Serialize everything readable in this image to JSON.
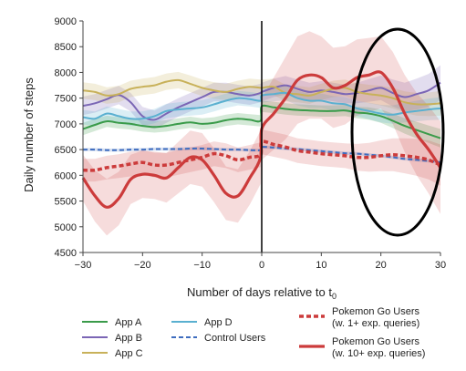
{
  "chart_data": {
    "type": "line",
    "xlabel": "Number of days relative to t",
    "xlabel_subscript": "0",
    "ylabel": "Daily number of steps",
    "xlim": [
      -30,
      30
    ],
    "ylim": [
      4500,
      9000
    ],
    "x_ticks": [
      "−30",
      "−20",
      "−10",
      "0",
      "10",
      "20",
      "30"
    ],
    "x_tick_values": [
      -30,
      -20,
      -10,
      0,
      10,
      20,
      30
    ],
    "y_ticks": [
      "4500",
      "5000",
      "5500",
      "6000",
      "6500",
      "7000",
      "7500",
      "8000",
      "8500",
      "9000"
    ],
    "y_tick_values": [
      4500,
      5000,
      5500,
      6000,
      6500,
      7000,
      7500,
      8000,
      8500,
      9000
    ],
    "grid": false,
    "event_line_x": 0,
    "annotation": "ellipse highlighting days 17–30",
    "legend_placement": "below plot",
    "x": [
      -30,
      -28,
      -26,
      -24,
      -22,
      -20,
      -18,
      -16,
      -14,
      -12,
      -10,
      -8,
      -6,
      -4,
      -2,
      -0.2,
      0,
      2,
      4,
      6,
      8,
      10,
      12,
      14,
      16,
      18,
      20,
      22,
      24,
      26,
      28,
      30
    ],
    "series": [
      {
        "name": "App A",
        "color": "#3a9b4a",
        "dash": "solid",
        "values": [
          6900,
          6980,
          7050,
          7020,
          7000,
          6960,
          6940,
          6960,
          7000,
          7030,
          7000,
          7020,
          7070,
          7100,
          7080,
          7060,
          7340,
          7320,
          7290,
          7270,
          7260,
          7250,
          7250,
          7260,
          7220,
          7200,
          7150,
          7060,
          6960,
          6880,
          6800,
          6720
        ],
        "band_width": [
          120,
          120,
          110,
          110,
          110,
          110,
          110,
          110,
          110,
          110,
          110,
          110,
          110,
          110,
          110,
          110,
          110,
          110,
          110,
          110,
          110,
          110,
          110,
          110,
          110,
          120,
          130,
          140,
          150,
          160,
          170,
          180
        ]
      },
      {
        "name": "App B",
        "color": "#7b66b5",
        "dash": "solid",
        "values": [
          7350,
          7400,
          7480,
          7560,
          7420,
          7150,
          7080,
          7200,
          7320,
          7420,
          7520,
          7620,
          7620,
          7580,
          7550,
          7600,
          7620,
          7700,
          7750,
          7680,
          7620,
          7650,
          7620,
          7580,
          7600,
          7650,
          7700,
          7600,
          7520,
          7580,
          7650,
          7800
        ],
        "band_width": [
          180,
          180,
          180,
          180,
          180,
          180,
          180,
          180,
          180,
          180,
          180,
          180,
          180,
          180,
          180,
          180,
          180,
          180,
          180,
          180,
          180,
          180,
          180,
          180,
          200,
          220,
          240,
          260,
          280,
          300,
          320,
          340
        ]
      },
      {
        "name": "App C",
        "color": "#c8b15a",
        "dash": "solid",
        "values": [
          7650,
          7620,
          7550,
          7580,
          7680,
          7720,
          7750,
          7820,
          7850,
          7780,
          7700,
          7650,
          7620,
          7680,
          7720,
          7700,
          7700,
          7720,
          7600,
          7580,
          7550,
          7620,
          7680,
          7700,
          7620,
          7580,
          7550,
          7500,
          7420,
          7380,
          7380,
          7400
        ],
        "band_width": [
          160,
          160,
          160,
          160,
          160,
          160,
          160,
          160,
          160,
          160,
          160,
          160,
          160,
          160,
          160,
          160,
          160,
          160,
          160,
          160,
          160,
          160,
          160,
          160,
          170,
          180,
          190,
          200,
          210,
          220,
          230,
          240
        ]
      },
      {
        "name": "App D",
        "color": "#5ab0d0",
        "dash": "solid",
        "values": [
          7130,
          7100,
          7200,
          7150,
          7100,
          7100,
          7150,
          7250,
          7280,
          7300,
          7320,
          7380,
          7450,
          7500,
          7480,
          7450,
          7550,
          7580,
          7600,
          7500,
          7450,
          7450,
          7400,
          7380,
          7300,
          7250,
          7200,
          7180,
          7220,
          7250,
          7280,
          7300
        ],
        "band_width": [
          140,
          140,
          140,
          140,
          140,
          140,
          140,
          140,
          140,
          140,
          140,
          140,
          140,
          140,
          140,
          140,
          140,
          140,
          140,
          140,
          140,
          140,
          140,
          140,
          150,
          160,
          170,
          180,
          190,
          200,
          210,
          220
        ]
      },
      {
        "name": "Control Users",
        "color": "#3f6dbf",
        "dash": "dashed",
        "values": [
          6500,
          6500,
          6490,
          6490,
          6500,
          6500,
          6510,
          6510,
          6510,
          6520,
          6520,
          6510,
          6500,
          6500,
          6490,
          6490,
          6550,
          6540,
          6520,
          6510,
          6490,
          6470,
          6450,
          6430,
          6420,
          6400,
          6380,
          6350,
          6320,
          6300,
          6280,
          6250
        ],
        "band_width": [
          30,
          30,
          30,
          30,
          30,
          30,
          30,
          30,
          30,
          30,
          30,
          30,
          30,
          30,
          30,
          30,
          30,
          30,
          30,
          30,
          30,
          30,
          30,
          30,
          30,
          30,
          30,
          30,
          30,
          30,
          30,
          30
        ]
      },
      {
        "name": "Pokemon Go Users",
        "name_line2": "(w. 1+ exp. queries)",
        "color": "#cc3b3b",
        "dash": "dotted-thick",
        "values": [
          6100,
          6100,
          6150,
          6180,
          6220,
          6250,
          6200,
          6200,
          6250,
          6300,
          6350,
          6420,
          6380,
          6300,
          6350,
          6400,
          6650,
          6600,
          6550,
          6480,
          6450,
          6420,
          6400,
          6380,
          6350,
          6350,
          6380,
          6400,
          6380,
          6350,
          6300,
          6200
        ],
        "band_width": [
          220,
          220,
          230,
          230,
          240,
          240,
          240,
          240,
          240,
          240,
          240,
          240,
          240,
          240,
          240,
          240,
          240,
          240,
          240,
          240,
          240,
          240,
          240,
          240,
          260,
          280,
          300,
          320,
          340,
          360,
          380,
          400
        ]
      },
      {
        "name": "Pokemon Go Users",
        "name_line2": "(w. 10+ exp. queries)",
        "color": "#cc3b3b",
        "dash": "solid-thick",
        "values": [
          5950,
          5600,
          5380,
          5550,
          5920,
          6020,
          6000,
          5950,
          6150,
          6350,
          6300,
          6000,
          5650,
          5600,
          5950,
          6350,
          6900,
          7200,
          7500,
          7850,
          7950,
          7900,
          7700,
          7750,
          7900,
          7950,
          8000,
          7700,
          7200,
          6800,
          6500,
          6150
        ],
        "band_width": [
          450,
          500,
          550,
          520,
          480,
          460,
          460,
          480,
          500,
          520,
          520,
          520,
          520,
          520,
          520,
          520,
          600,
          700,
          800,
          850,
          850,
          800,
          780,
          760,
          740,
          720,
          700,
          700,
          750,
          800,
          850,
          900
        ]
      }
    ]
  }
}
